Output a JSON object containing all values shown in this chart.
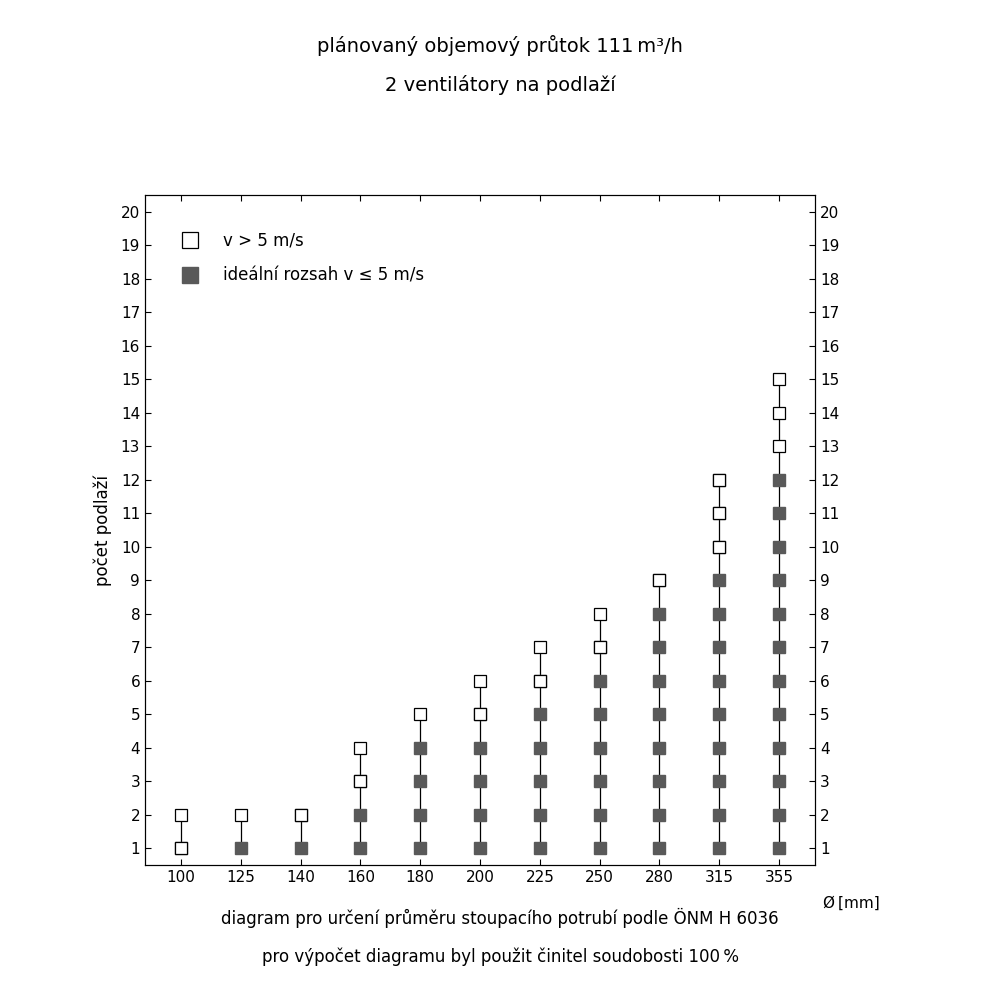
{
  "title_line1": "plánovaný objemový průtok 111 m³/h",
  "title_line2": "2 ventilátory na podlaží",
  "ylabel": "počet podlaží",
  "xlabel_label": "Ø [mm]",
  "footnote_line1": "diagram pro určení průměru stoupacího potrubí podle ÖNM H 6036",
  "footnote_line2": "pro výpočet diagramu byl použit činitel soudobosti 100 %",
  "diameters": [
    100,
    125,
    140,
    160,
    180,
    200,
    225,
    250,
    280,
    315,
    355
  ],
  "legend_open": "v > 5 m/s",
  "legend_filled": "ideální rozsah v ≤ 5 m/s",
  "filled_color": "#595959",
  "marker_size": 9,
  "columns": {
    "100": {
      "line_max": 2,
      "open": [
        1,
        2
      ],
      "filled": [
        1
      ]
    },
    "125": {
      "line_max": 2,
      "open": [
        2
      ],
      "filled": [
        1
      ]
    },
    "140": {
      "line_max": 2,
      "open": [
        2
      ],
      "filled": [
        1,
        2
      ]
    },
    "160": {
      "line_max": 4,
      "open": [
        3,
        4
      ],
      "filled": [
        1,
        2,
        3
      ]
    },
    "180": {
      "line_max": 5,
      "open": [
        5
      ],
      "filled": [
        1,
        2,
        3,
        4
      ]
    },
    "200": {
      "line_max": 6,
      "open": [
        5,
        6
      ],
      "filled": [
        1,
        2,
        3,
        4,
        5
      ]
    },
    "225": {
      "line_max": 7,
      "open": [
        6,
        7
      ],
      "filled": [
        1,
        2,
        3,
        4,
        5,
        6
      ]
    },
    "250": {
      "line_max": 8,
      "open": [
        7,
        8
      ],
      "filled": [
        1,
        2,
        3,
        4,
        5,
        6,
        7
      ]
    },
    "280": {
      "line_max": 9,
      "open": [
        9
      ],
      "filled": [
        1,
        2,
        3,
        4,
        5,
        6,
        7,
        8,
        9
      ]
    },
    "315": {
      "line_max": 12,
      "open": [
        10,
        11,
        12
      ],
      "filled": [
        1,
        2,
        3,
        4,
        5,
        6,
        7,
        8,
        9,
        10,
        11,
        12
      ]
    },
    "355": {
      "line_max": 15,
      "open": [
        13,
        14,
        15
      ],
      "filled": [
        1,
        2,
        3,
        4,
        5,
        6,
        7,
        8,
        9,
        10,
        11,
        12
      ]
    }
  },
  "title_fontsize": 14,
  "axis_fontsize": 11,
  "label_fontsize": 12,
  "footnote_fontsize": 12
}
